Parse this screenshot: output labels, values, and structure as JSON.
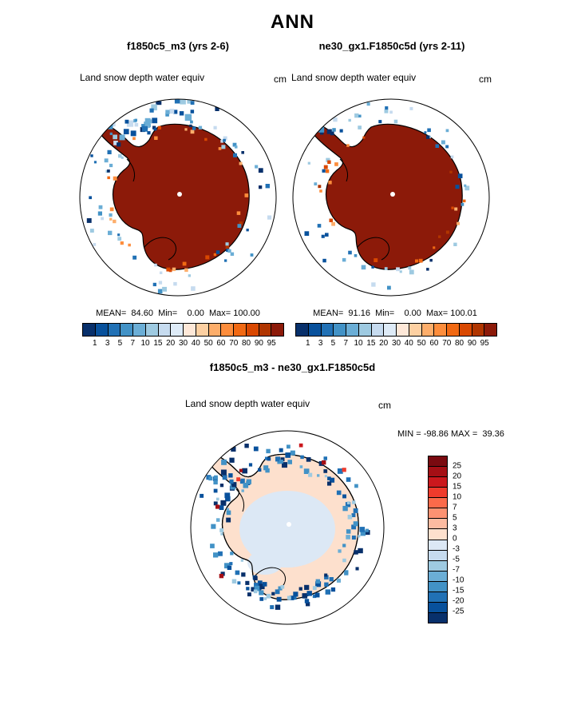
{
  "labels": {
    "page_title": "ANN",
    "left_title": "f1850c5_m3 (yrs 2-6)",
    "right_title": "ne30_gx1.F1850c5d (yrs 2-11)",
    "diff_title": "f1850c5_m3 - ne30_gx1.F1850c5d",
    "left_var": "Land snow depth water equiv",
    "right_var": "Land snow depth water equiv",
    "diff_var": "Land snow depth water equiv",
    "units": "cm",
    "left_stats": "MEAN=  84.60  Min=    0.00  Max= 100.00",
    "right_stats": "MEAN=  91.16  Min=    0.00  Max= 100.01",
    "diff_stats": "MIN = -98.86 MAX =  39.36"
  },
  "chart_data": [
    {
      "type": "heatmap",
      "subtype": "south-polar-stereographic-map",
      "panel": "left",
      "title": "f1850c5_m3 (yrs 2-6)",
      "variable": "Land snow depth water equiv",
      "units": "cm",
      "stats": {
        "mean": 84.6,
        "min": 0.0,
        "max": 100.0
      },
      "region_summary": "Antarctica continent saturated at top color (>95 cm); scattered low-value blue cells over surrounding ocean and coastal fringe",
      "colorbar": {
        "orientation": "horizontal",
        "tick_labels": [
          "1",
          "3",
          "5",
          "7",
          "10",
          "15",
          "20",
          "30",
          "40",
          "50",
          "60",
          "70",
          "80",
          "90",
          "95"
        ],
        "colors": [
          "#08306b",
          "#08519c",
          "#2171b5",
          "#4292c6",
          "#6baed6",
          "#9ecae1",
          "#c6dbef",
          "#deebf7",
          "#fee8d8",
          "#fdd0a2",
          "#fdae6b",
          "#fd8d3c",
          "#f16913",
          "#d94801",
          "#b03500",
          "#8c1a09"
        ]
      }
    },
    {
      "type": "heatmap",
      "subtype": "south-polar-stereographic-map",
      "panel": "right",
      "title": "ne30_gx1.F1850c5d (yrs 2-11)",
      "variable": "Land snow depth water equiv",
      "units": "cm",
      "stats": {
        "mean": 91.16,
        "min": 0.0,
        "max": 100.01
      },
      "region_summary": "Antarctica continent saturated at top color (>95 cm); fewer scattered blue cells near coast than left panel",
      "colorbar": {
        "orientation": "horizontal",
        "tick_labels": [
          "1",
          "3",
          "5",
          "7",
          "10",
          "15",
          "20",
          "30",
          "40",
          "50",
          "60",
          "70",
          "80",
          "90",
          "95"
        ],
        "colors": [
          "#08306b",
          "#08519c",
          "#2171b5",
          "#4292c6",
          "#6baed6",
          "#9ecae1",
          "#c6dbef",
          "#deebf7",
          "#fee8d8",
          "#fdd0a2",
          "#fdae6b",
          "#fd8d3c",
          "#f16913",
          "#d94801",
          "#b03500",
          "#8c1a09"
        ]
      }
    },
    {
      "type": "heatmap",
      "subtype": "south-polar-stereographic-map-difference",
      "panel": "diff",
      "title": "f1850c5_m3 - ne30_gx1.F1850c5d",
      "variable": "Land snow depth water equiv",
      "units": "cm",
      "stats": {
        "min": -98.86,
        "max": 39.36
      },
      "region_summary": "Interior near zero (pale blue/cream, 0 to -3 cm); strong negative dark-blue ring of cells along Antarctic coastline; a few positive red cells",
      "colorbar": {
        "orientation": "vertical",
        "tick_labels": [
          "25",
          "20",
          "15",
          "10",
          "7",
          "5",
          "3",
          "0",
          "-3",
          "-5",
          "-7",
          "-10",
          "-15",
          "-20",
          "-25"
        ],
        "colors": [
          "#7a0a10",
          "#a50f15",
          "#cb181d",
          "#ef3b2c",
          "#fb6a4a",
          "#fc9272",
          "#fcbba1",
          "#fde0cd",
          "#dce8f5",
          "#c6dbef",
          "#9ecae1",
          "#6baed6",
          "#4292c6",
          "#2171b5",
          "#08519c",
          "#08306b"
        ]
      }
    }
  ]
}
